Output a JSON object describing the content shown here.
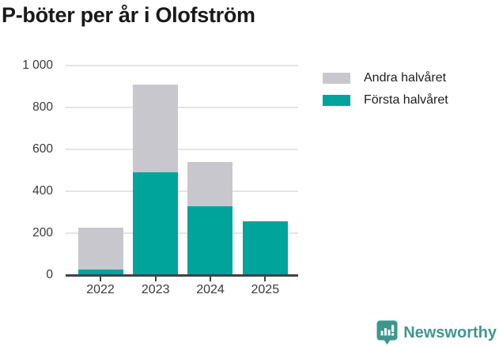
{
  "chart_data": {
    "type": "stacked-bar",
    "title": "P-böter per år i Olofström",
    "categories": [
      "2022",
      "2023",
      "2024",
      "2025"
    ],
    "series": [
      {
        "name": "Första halvåret",
        "color": "#00a49b",
        "values": [
          25,
          490,
          330,
          255
        ]
      },
      {
        "name": "Andra halvåret",
        "color": "#c9c7ce",
        "values": [
          200,
          420,
          210,
          0
        ]
      }
    ],
    "totals": [
      225,
      910,
      540,
      255
    ],
    "xlabel": "",
    "ylabel": "",
    "ylim": [
      0,
      1000
    ],
    "yticks": [
      {
        "value": 0,
        "label": "0"
      },
      {
        "value": 200,
        "label": "200"
      },
      {
        "value": 400,
        "label": "400"
      },
      {
        "value": 600,
        "label": "600"
      },
      {
        "value": 800,
        "label": "800"
      },
      {
        "value": 1000,
        "label": "1 000"
      }
    ],
    "grid": true,
    "legend_position": "right-of-plot-top",
    "legend": [
      {
        "label": "Andra halvåret",
        "color": "#c9c7ce"
      },
      {
        "label": "Första halvåret",
        "color": "#00a49b"
      }
    ]
  },
  "footer": {
    "brand": "Newsworthy",
    "brand_color": "#3e978e"
  }
}
